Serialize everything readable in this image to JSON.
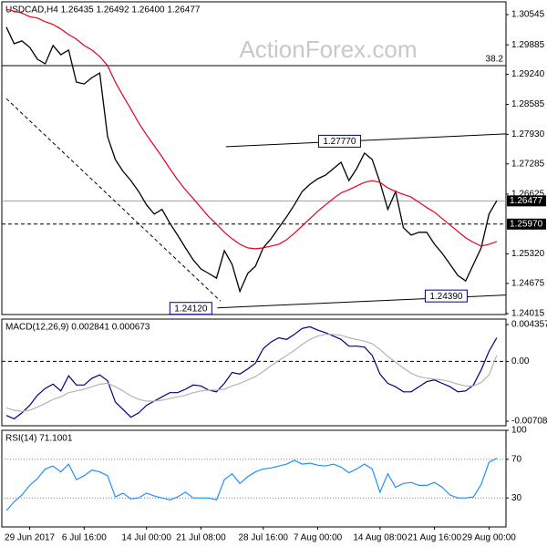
{
  "chart_data": [
    {
      "type": "line",
      "title": "USDCAD,H4 1.26435 1.26492 1.26400 1.26477",
      "watermark": "ActionForex.com",
      "xlim": [
        -0.58,
        64.18
      ],
      "ylim": [
        1.23995,
        1.30824
      ],
      "yticks": [
        1.30545,
        1.29885,
        {
          "value": 1.2924,
          "label": "1.29240"
        },
        1.28585,
        {
          "value": 1.2793,
          "label": "1.27930"
        },
        1.27285,
        1.26625,
        {
          "value": 1.2532,
          "label": "1.25320"
        },
        1.24675,
        1.24015
      ],
      "series": [
        {
          "color": "#000000",
          "values": [
            1.3027,
            1.2991,
            1.2997,
            1.2983,
            1.2957,
            1.2947,
            1.2987,
            1.2967,
            1.2977,
            1.2907,
            1.2903,
            1.2917,
            1.2927,
            1.2788,
            1.2738,
            1.2712,
            1.2692,
            1.2668,
            1.2639,
            1.2619,
            1.2629,
            1.2599,
            1.2573,
            1.2545,
            1.2519,
            1.2499,
            1.2489,
            1.2479,
            1.2539,
            1.2509,
            1.245,
            1.2489,
            1.2505,
            1.2545,
            1.2565,
            1.2589,
            1.2613,
            1.2639,
            1.2668,
            1.2684,
            1.2696,
            1.2704,
            1.2718,
            1.2732,
            1.2692,
            1.2718,
            1.2752,
            1.2738,
            1.2688,
            1.2629,
            1.2668,
            1.2589,
            1.2573,
            1.2579,
            1.2579,
            1.2553,
            1.2533,
            1.2509,
            1.2485,
            1.2473,
            1.2509,
            1.2545,
            1.2619,
            1.2648
          ]
        },
        {
          "color": "#e8001c",
          "values": [
            1.3066,
            1.3062,
            1.3058,
            1.305,
            1.3047,
            1.3039,
            1.3033,
            1.3023,
            1.3011,
            1.3001,
            1.2987,
            1.2977,
            1.2963,
            1.2943,
            1.2907,
            1.2877,
            1.2848,
            1.2818,
            1.2792,
            1.2768,
            1.2744,
            1.2718,
            1.2694,
            1.2672,
            1.2653,
            1.2633,
            1.2613,
            1.2597,
            1.2579,
            1.2565,
            1.2553,
            1.2545,
            1.2543,
            1.2545,
            1.2549,
            1.2553,
            1.2563,
            1.2577,
            1.2593,
            1.2609,
            1.2625,
            1.2639,
            1.2653,
            1.2665,
            1.2672,
            1.268,
            1.2688,
            1.2692,
            1.2688,
            1.2676,
            1.2668,
            1.2662,
            1.2656,
            1.2645,
            1.2633,
            1.2623,
            1.2609,
            1.2595,
            1.2581,
            1.2567,
            1.2557,
            1.2549,
            1.2553,
            1.2559
          ]
        }
      ],
      "hlines": [
        {
          "value": 1.2943,
          "label": "38.2",
          "style": "solid",
          "color": "#000000",
          "tag": "left"
        },
        {
          "value": 1.2597,
          "label": "1.25970",
          "style": "dashed",
          "color": "#000000",
          "tag": "axis"
        },
        {
          "value": 1.26477,
          "label": "1.26477",
          "style": "solid",
          "color": "#a0a0a0",
          "tag": "axis"
        }
      ],
      "trendlines": [
        {
          "x": [
            28.2,
            64.2
          ],
          "values": [
            1.2766,
            1.2794
          ],
          "style": "solid"
        },
        {
          "x": [
            27.1,
            64.2
          ],
          "values": [
            1.2414,
            1.2442
          ],
          "style": "solid"
        },
        {
          "x": [
            0,
            27.5
          ],
          "values": [
            1.2871,
            1.2429
          ],
          "style": "dashed"
        }
      ],
      "annotations": [
        {
          "x": 42.8,
          "value": 1.2777,
          "label": "1.27770"
        },
        {
          "x": 23.7,
          "value": 1.2412,
          "label": "1.24120"
        },
        {
          "x": 56.5,
          "value": 1.2439,
          "label": "1.24390"
        }
      ]
    },
    {
      "type": "line",
      "title": "MACD(12,26,9) 0.002841 0.000673",
      "ylim": [
        -0.00762,
        0.00501
      ],
      "yticks": [
        0.004357,
        {
          "value": 0,
          "label": "0.00"
        },
        -0.007081
      ],
      "series": [
        {
          "color": "#000080",
          "values": [
            -0.0064,
            -0.0068,
            -0.0061,
            -0.0052,
            -0.004,
            -0.0032,
            -0.0027,
            -0.0035,
            -0.0017,
            -0.0028,
            -0.0028,
            -0.002,
            -0.0016,
            -0.0023,
            -0.0048,
            -0.0057,
            -0.0066,
            -0.0061,
            -0.0052,
            -0.0047,
            -0.0042,
            -0.0037,
            -0.0037,
            -0.0033,
            -0.0028,
            -0.0029,
            -0.0034,
            -0.0036,
            -0.0026,
            -0.0013,
            -0.0015,
            -0.0009,
            -0.0002,
            0.0015,
            0.0023,
            0.0028,
            0.0026,
            0.0032,
            0.0039,
            0.0041,
            0.0037,
            0.0034,
            0.003,
            0.0026,
            0.0018,
            0.0018,
            0.0017,
            0.0007,
            -0.0015,
            -0.0026,
            -0.003,
            -0.0036,
            -0.0036,
            -0.003,
            -0.0024,
            -0.0022,
            -0.0026,
            -0.003,
            -0.0036,
            -0.0035,
            -0.0028,
            -0.001,
            0.0012,
            0.0028
          ]
        },
        {
          "color": "#b4b4b4",
          "values": [
            -0.0055,
            -0.0058,
            -0.0059,
            -0.0058,
            -0.0054,
            -0.005,
            -0.0045,
            -0.0042,
            -0.0037,
            -0.0035,
            -0.0033,
            -0.003,
            -0.0027,
            -0.0026,
            -0.003,
            -0.0035,
            -0.0041,
            -0.0045,
            -0.0047,
            -0.0047,
            -0.0046,
            -0.0044,
            -0.0042,
            -0.004,
            -0.0037,
            -0.0035,
            -0.0034,
            -0.0034,
            -0.0033,
            -0.0029,
            -0.0026,
            -0.0022,
            -0.0018,
            -0.0012,
            -0.0005,
            0.0001,
            0.0007,
            0.0013,
            0.002,
            0.0026,
            0.003,
            0.0032,
            0.0032,
            0.0031,
            0.0028,
            0.0026,
            0.0024,
            0.0021,
            0.0014,
            0.0006,
            -0.0001,
            -0.0008,
            -0.0014,
            -0.0018,
            -0.002,
            -0.0021,
            -0.0022,
            -0.0024,
            -0.0027,
            -0.0029,
            -0.0029,
            -0.0025,
            -0.0016,
            0.0007
          ]
        }
      ],
      "hlines": [
        {
          "value": 0,
          "style": "dashed",
          "color": "#000000"
        }
      ]
    },
    {
      "type": "line",
      "title": "RSI(14) 71.1001",
      "ylim": [
        0,
        100
      ],
      "yticks": [
        100,
        70,
        30
      ],
      "series": [
        {
          "color": "#1e90ff",
          "values": [
            17,
            26,
            33,
            43,
            50,
            60,
            63,
            57,
            65,
            49,
            53,
            59,
            57,
            53,
            31,
            35,
            29,
            30,
            35,
            32,
            30,
            28,
            31,
            36,
            30,
            30,
            30,
            28,
            49,
            55,
            45,
            52,
            57,
            60,
            61,
            63,
            65,
            69,
            65,
            66,
            64,
            63,
            65,
            62,
            56,
            60,
            65,
            60,
            36,
            55,
            41,
            45,
            46,
            43,
            43,
            46,
            41,
            33,
            30,
            30,
            31,
            44,
            67,
            71
          ]
        }
      ],
      "hlines": [
        {
          "value": 70,
          "style": "dotted",
          "color": "#808080"
        },
        {
          "value": 30,
          "style": "dotted",
          "color": "#808080"
        }
      ],
      "xticks": [
        {
          "value": 3,
          "label": "29 Jun 2017"
        },
        {
          "value": 10,
          "label": "6 Jul 16:00"
        },
        {
          "value": 18,
          "label": "14 Jul 00:00"
        },
        {
          "value": 25,
          "label": "21 Jul 08:00"
        },
        {
          "value": 33,
          "label": "28 Jul 16:00"
        },
        {
          "value": 40,
          "label": "7 Aug 00:00"
        },
        {
          "value": 48,
          "label": "14 Aug 08:00"
        },
        {
          "value": 55,
          "label": "21 Aug 16:00"
        },
        {
          "value": 62,
          "label": "29 Aug 00:00"
        }
      ]
    }
  ]
}
